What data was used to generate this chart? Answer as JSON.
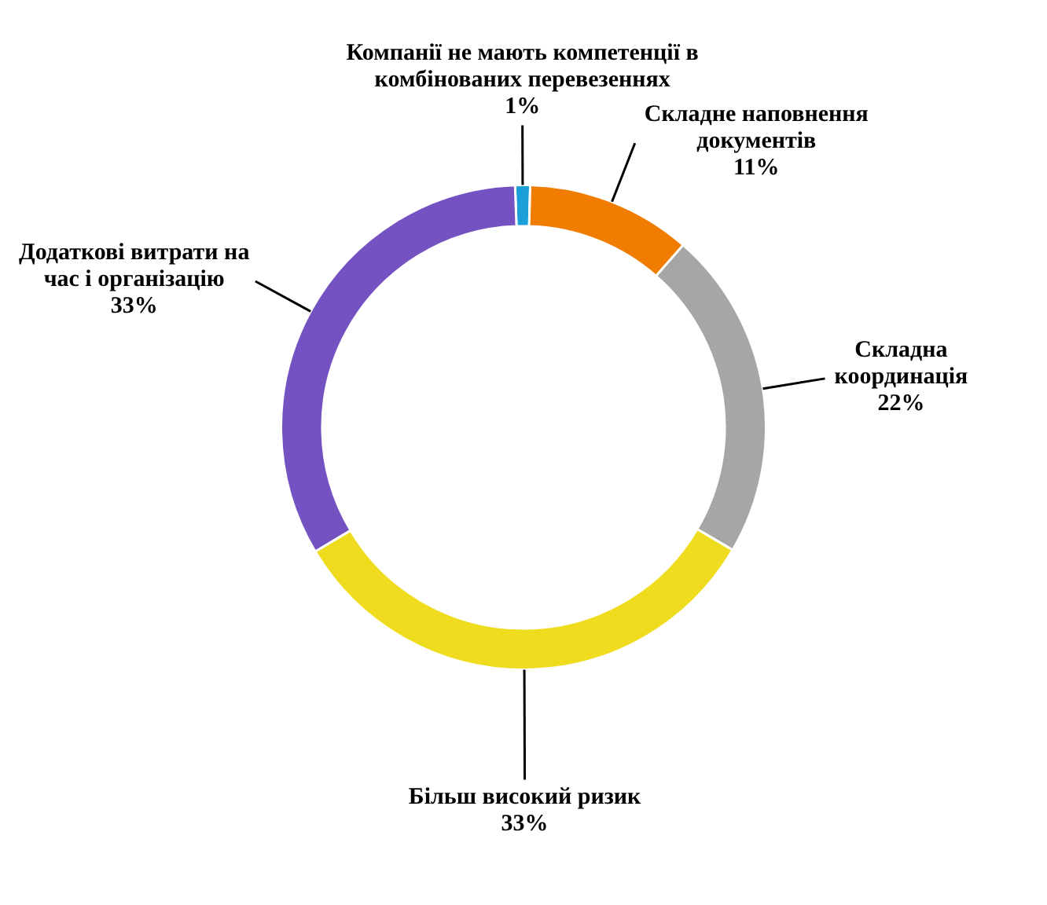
{
  "chart_data": {
    "type": "donut",
    "categories": [
      "Компанії не мають компетенції в комбінованих перевезеннях",
      "Складне наповнення документів",
      "Складна координація",
      "Більш високий ризик",
      "Додаткові витрати на час і організацію"
    ],
    "values": [
      1,
      11,
      22,
      33,
      33
    ],
    "colors": [
      "#1a9fd8",
      "#f07c00",
      "#a6a6a6",
      "#f0dc1e",
      "#7452c2"
    ],
    "value_labels": [
      "1%",
      "11%",
      "22%",
      "33%",
      "33%"
    ],
    "legend": false
  }
}
